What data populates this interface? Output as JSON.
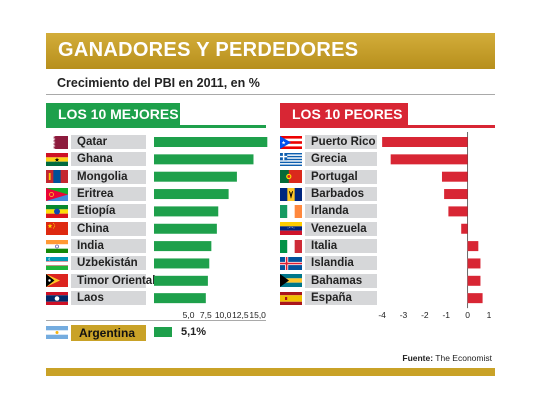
{
  "header": {
    "title": "GANADORES Y PERDEDORES"
  },
  "subtitle": "Crecimiento del PBI en 2011, en %",
  "source": {
    "label": "Fuente:",
    "text": "The Economist"
  },
  "colors": {
    "gold": "#c9a227",
    "green": "#1ea04b",
    "red": "#d82634",
    "label_bg": "#d6d7d9"
  },
  "chart_data": [
    {
      "type": "bar",
      "title": "LOS 10 MEJORES",
      "categories": [
        "Qatar",
        "Ghana",
        "Mongolia",
        "Eritrea",
        "Etiopía",
        "China",
        "India",
        "Uzbekistán",
        "Timor Oriental",
        "Laos"
      ],
      "values": [
        16.4,
        14.4,
        12.0,
        10.8,
        9.3,
        9.1,
        8.3,
        8.0,
        7.8,
        7.5
      ],
      "xlim": [
        0,
        16.5
      ],
      "ticks": [
        5.0,
        7.5,
        10.0,
        12.5,
        15.0
      ],
      "tick_labels": [
        "5,0",
        "7,5",
        "10,0",
        "12,5",
        "15,0"
      ],
      "reference": {
        "category": "Argentina",
        "value": 5.1,
        "label": "5,1%"
      }
    },
    {
      "type": "bar",
      "title": "LOS 10 PEORES",
      "categories": [
        "Puerto Rico",
        "Grecia",
        "Portugal",
        "Barbados",
        "Irlanda",
        "Venezuela",
        "Italia",
        "Islandia",
        "Bahamas",
        "España"
      ],
      "values": [
        -4.0,
        -3.6,
        -1.2,
        -1.1,
        -0.9,
        -0.3,
        0.5,
        0.6,
        0.6,
        0.7
      ],
      "xlim": [
        -4.1,
        1.0
      ],
      "ticks": [
        -4,
        -3,
        -2,
        -1,
        0,
        1
      ],
      "tick_labels": [
        "-4",
        "-3",
        "-2",
        "-1",
        "0",
        "1"
      ]
    }
  ]
}
